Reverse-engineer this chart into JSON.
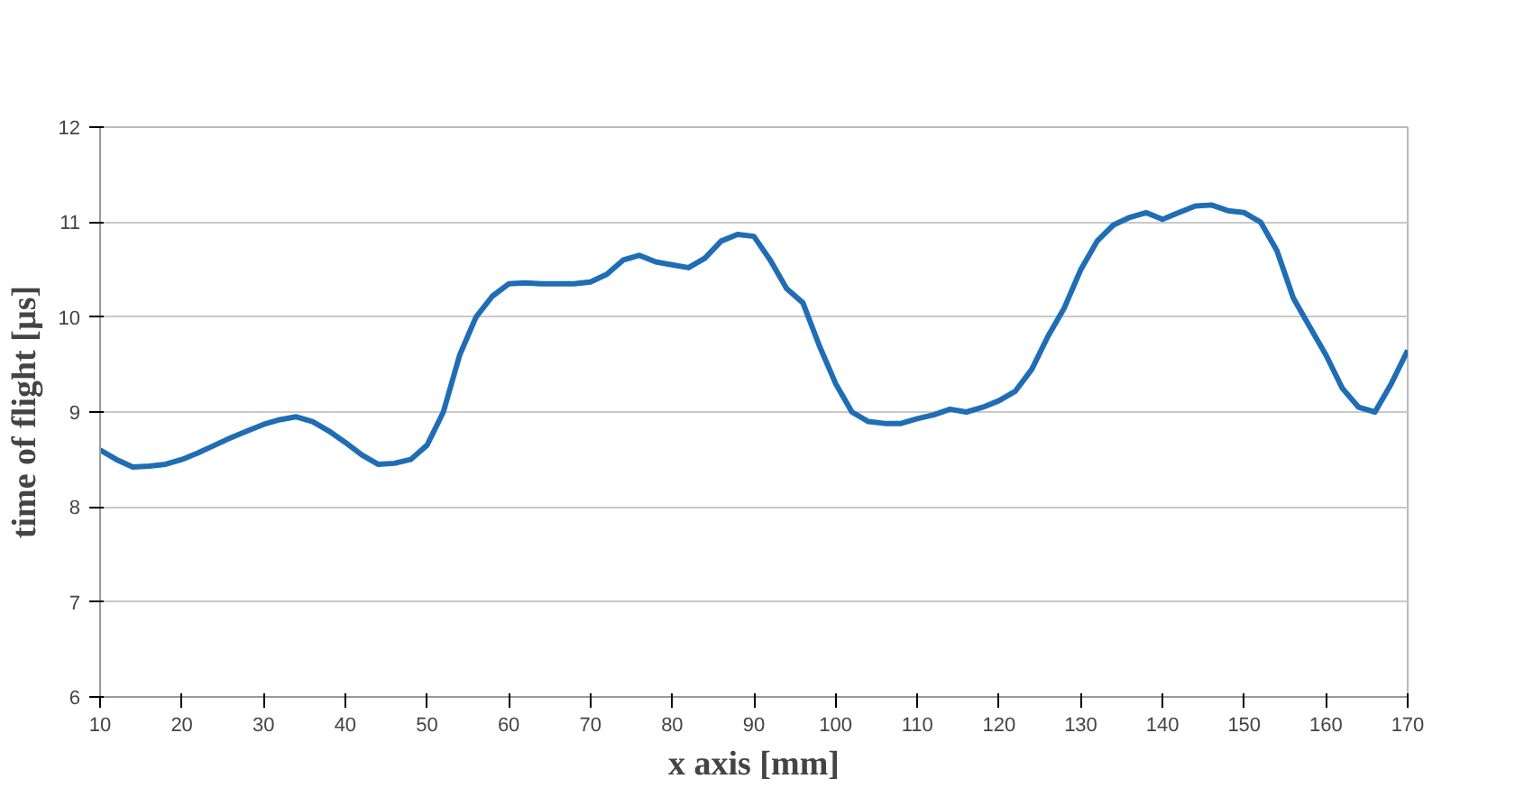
{
  "chart_data": {
    "type": "line",
    "xlabel": "x axis [mm]",
    "ylabel": "time of flight [µs]",
    "x": [
      10,
      12,
      14,
      16,
      18,
      20,
      22,
      24,
      26,
      28,
      30,
      32,
      34,
      36,
      38,
      40,
      42,
      44,
      46,
      48,
      50,
      52,
      54,
      56,
      58,
      60,
      62,
      64,
      66,
      68,
      70,
      72,
      74,
      76,
      78,
      80,
      82,
      84,
      86,
      88,
      90,
      92,
      94,
      96,
      98,
      100,
      102,
      104,
      106,
      108,
      110,
      112,
      114,
      116,
      118,
      120,
      122,
      124,
      126,
      128,
      130,
      132,
      134,
      136,
      138,
      140,
      142,
      144,
      146,
      148,
      150,
      152,
      154,
      156,
      158,
      160,
      162,
      164,
      166,
      168,
      170
    ],
    "series": [
      {
        "color": "#1f6db5",
        "values": [
          8.6,
          8.5,
          8.42,
          8.43,
          8.45,
          8.5,
          8.57,
          8.65,
          8.73,
          8.8,
          8.87,
          8.92,
          8.95,
          8.9,
          8.8,
          8.68,
          8.55,
          8.45,
          8.46,
          8.5,
          8.65,
          9.0,
          9.6,
          10.0,
          10.22,
          10.35,
          10.36,
          10.35,
          10.35,
          10.35,
          10.37,
          10.45,
          10.6,
          10.65,
          10.58,
          10.55,
          10.52,
          10.62,
          10.8,
          10.87,
          10.85,
          10.6,
          10.3,
          10.15,
          9.7,
          9.3,
          9.0,
          8.9,
          8.88,
          8.88,
          8.93,
          8.97,
          9.03,
          9.0,
          9.05,
          9.12,
          9.22,
          9.45,
          9.8,
          10.1,
          10.5,
          10.8,
          10.97,
          11.05,
          11.1,
          11.03,
          11.1,
          11.17,
          11.18,
          11.12,
          11.1,
          11.0,
          10.7,
          10.2,
          9.9,
          9.6,
          9.25,
          9.05,
          9.0,
          9.3,
          9.65
        ]
      }
    ],
    "xlim": [
      10,
      170
    ],
    "xticks": [
      10,
      20,
      30,
      40,
      50,
      60,
      70,
      80,
      90,
      100,
      110,
      120,
      130,
      140,
      150,
      160,
      170
    ],
    "ylim": [
      6,
      12
    ],
    "yticks": [
      6,
      7,
      8,
      9,
      10,
      11,
      12
    ],
    "grid": "y",
    "marker": "none",
    "line_style": "solid"
  }
}
